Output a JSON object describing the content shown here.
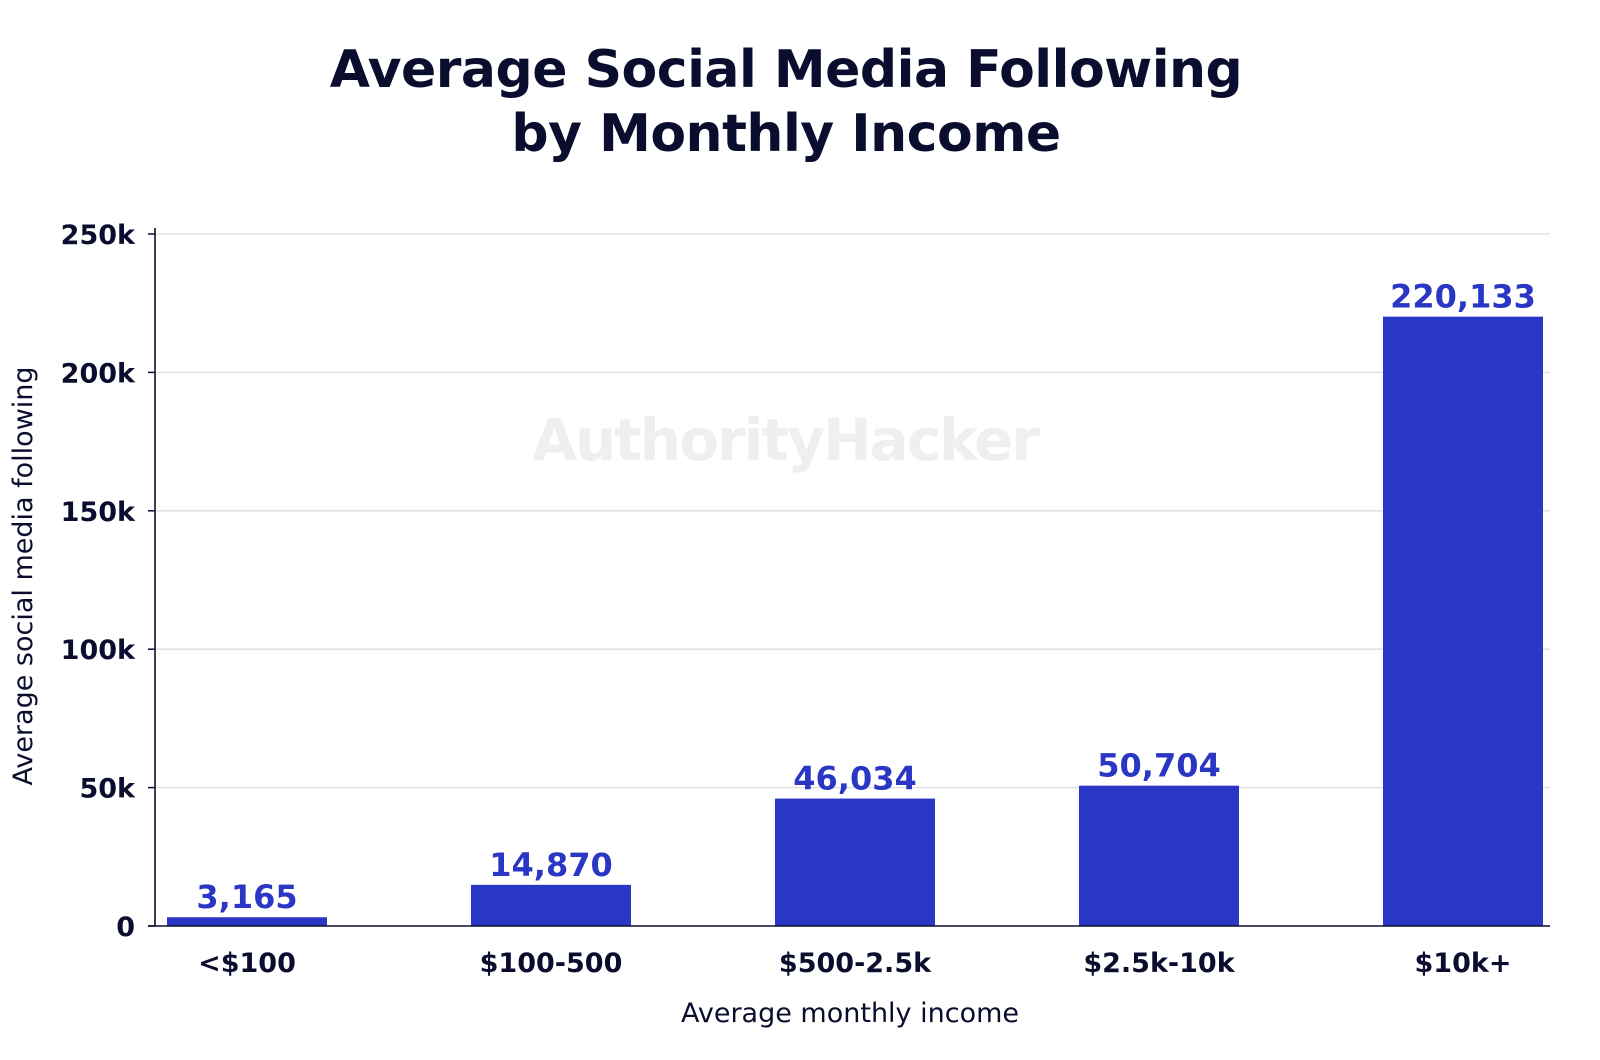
{
  "chart_data": {
    "type": "bar",
    "title_lines": [
      "Average Social Media Following",
      "by Monthly Income"
    ],
    "xlabel": "Average monthly income",
    "ylabel": "Average social media following",
    "categories": [
      "<$100",
      "$100-500",
      "$500-2.5k",
      "$2.5k-10k",
      "$10k+"
    ],
    "values": [
      3165,
      14870,
      46034,
      50704,
      220133
    ],
    "data_labels": [
      "3,165",
      "14,870",
      "46,034",
      "50,704",
      "220,133"
    ],
    "ylim": [
      0,
      250000
    ],
    "yticks": [
      0,
      50000,
      100000,
      150000,
      200000,
      250000
    ],
    "ytick_labels": [
      "0",
      "50k",
      "100k",
      "150k",
      "200k",
      "250k"
    ],
    "grid": true,
    "watermark": "AuthorityHacker",
    "colors": {
      "bar": "#2a36c4",
      "label": "#2a36c4",
      "text": "#0b0d2e",
      "grid": "#dcdce3"
    }
  }
}
